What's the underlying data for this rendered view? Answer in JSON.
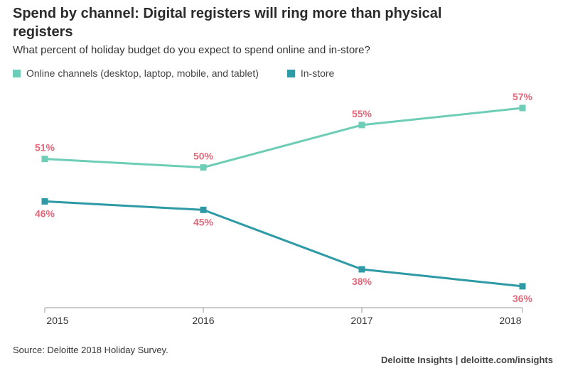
{
  "title": "Spend by channel: Digital registers will ring more than physical registers",
  "subtitle": "What percent of holiday budget do you expect to spend online and in-store?",
  "source": "Source: Deloitte 2018 Holiday Survey.",
  "brand": "Deloitte Insights | deloitte.com/insights",
  "colors": {
    "online": "#6ecdb6",
    "instore": "#2d9aa6",
    "label": "#e2697b",
    "axis": "#999999"
  },
  "chart_data": {
    "type": "line",
    "x": [
      "2015",
      "2016",
      "2017",
      "2018"
    ],
    "ylim": [
      33,
      60
    ],
    "grid": false,
    "legend_position": "top-left",
    "series": [
      {
        "name": "Online channels (desktop, laptop, mobile, and tablet)",
        "values": [
          51,
          50,
          55,
          57
        ],
        "labels": [
          "51%",
          "50%",
          "55%",
          "57%"
        ],
        "label_side": "above"
      },
      {
        "name": "In-store",
        "values": [
          46,
          45,
          38,
          36
        ],
        "labels": [
          "46%",
          "45%",
          "38%",
          "36%"
        ],
        "label_side": "below"
      }
    ]
  }
}
